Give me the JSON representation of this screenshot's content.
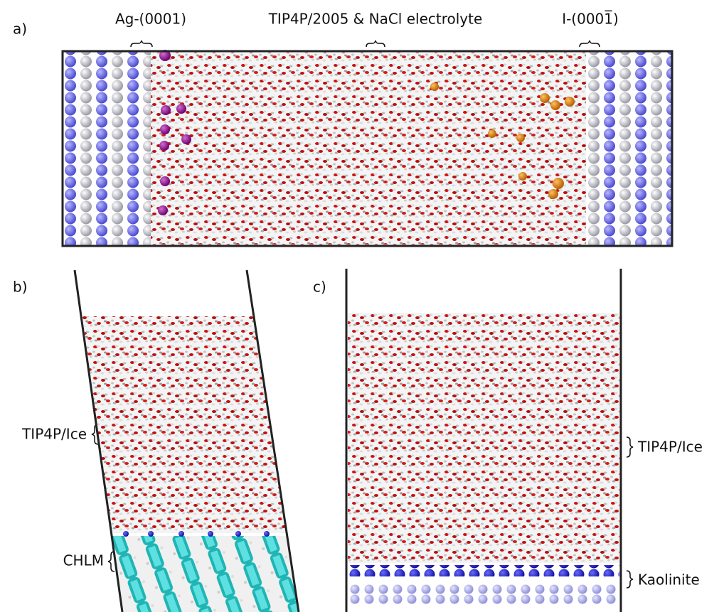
{
  "panels": [
    {
      "label": "a)",
      "annotations": [
        "Ag-(0001)",
        "TIP4P/2005 & NaCl electrolyte",
        "I-(0001̅)"
      ]
    },
    {
      "label": "b)",
      "annotations": [
        "TIP4P/Ice",
        "CHLM"
      ]
    },
    {
      "label": "c)",
      "annotations": [
        "TIP4P/Ice",
        "Kaolinite"
      ]
    }
  ]
}
